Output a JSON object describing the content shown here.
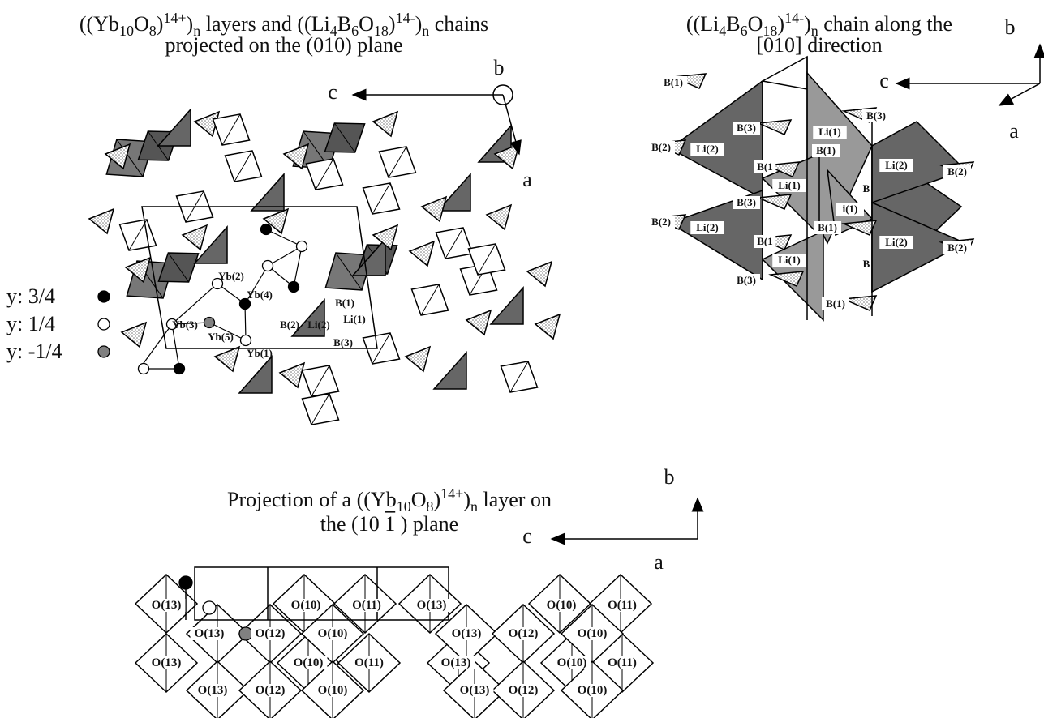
{
  "panels": [
    {
      "title": {
        "lines": [
          [
            {
              "t": "((Yb"
            },
            {
              "sub": "10"
            },
            {
              "t": "O"
            },
            {
              "sub": "8"
            },
            {
              "t": ")"
            },
            {
              "sup": "14+"
            },
            {
              "t": ")"
            },
            {
              "sub": "n"
            },
            {
              "t": " layers and ((Li"
            },
            {
              "sub": "4"
            },
            {
              "t": "B"
            },
            {
              "sub": "6"
            },
            {
              "t": "O"
            },
            {
              "sub": "18"
            },
            {
              "t": ")"
            },
            {
              "sup": "14-"
            },
            {
              "t": ")"
            },
            {
              "sub": "n"
            },
            {
              "t": " chains"
            }
          ],
          [
            {
              "t": "projected on the (010) plane"
            }
          ]
        ]
      },
      "axes": [
        "c",
        "b",
        "a"
      ],
      "labels": [
        "Yb(2)",
        "Yb(4)",
        "Yb(3)",
        "Yb(5)",
        "Yb(1)",
        "B(1)",
        "Li(1)",
        "B(2)",
        "Li(2)",
        "B(3)"
      ]
    },
    {
      "title": {
        "lines": [
          [
            {
              "t": "((Li"
            },
            {
              "sub": "4"
            },
            {
              "t": "B"
            },
            {
              "sub": "6"
            },
            {
              "t": "O"
            },
            {
              "sub": "18"
            },
            {
              "t": ")"
            },
            {
              "sup": "14-"
            },
            {
              "t": ")"
            },
            {
              "sub": "n"
            },
            {
              "t": " chain along the"
            }
          ],
          [
            {
              "t": "[010] direction"
            }
          ]
        ]
      },
      "axes": [
        "c",
        "b",
        "a"
      ],
      "labels": [
        "B(1)",
        "B(3)",
        "B(2)",
        "Li(2)",
        "Li(1)",
        "B(3)",
        "B(1)",
        "B(1",
        "Li(1)",
        "Li(2)",
        "B(2)",
        "B",
        "B(3)",
        "i(1)",
        "B(2)",
        "Li(2)",
        "B(1)",
        "B(1",
        "Li(2)",
        "B(2)",
        "Li(1)",
        "B",
        "B(3)",
        "B(1)"
      ]
    },
    {
      "title": {
        "lines": [
          [
            {
              "t": "Projection of a ((Yb"
            },
            {
              "sub": "10"
            },
            {
              "t": "O"
            },
            {
              "sub": "8"
            },
            {
              "t": ")"
            },
            {
              "sup": "14+"
            },
            {
              "t": ")"
            },
            {
              "sub": "n"
            },
            {
              "t": " layer on"
            }
          ],
          [
            {
              "t": "the (10 "
            },
            {
              "over": "1"
            },
            {
              "t": " ) plane"
            }
          ]
        ]
      },
      "axes": [
        "c",
        "b",
        "a"
      ],
      "labels": [
        "O(13)",
        "O(10)",
        "O(11)",
        "O(13)",
        "O(13)",
        "O(12)",
        "O(10)",
        "O(13)",
        "O(12)",
        "O(10)",
        "O(10)",
        "O(11)",
        "O(13)",
        "O(10)",
        "O(11)",
        "O(13)",
        "O(10)",
        "O(11)",
        "O(13)",
        "O(12)",
        "O(10)",
        "O(13)",
        "O(12)",
        "O(10)"
      ]
    }
  ],
  "legend": [
    {
      "label": "y: 3/4",
      "color": "#000000"
    },
    {
      "label": "y: 1/4",
      "color": "#ffffff"
    },
    {
      "label": "y: -1/4",
      "color": "#808080"
    }
  ]
}
